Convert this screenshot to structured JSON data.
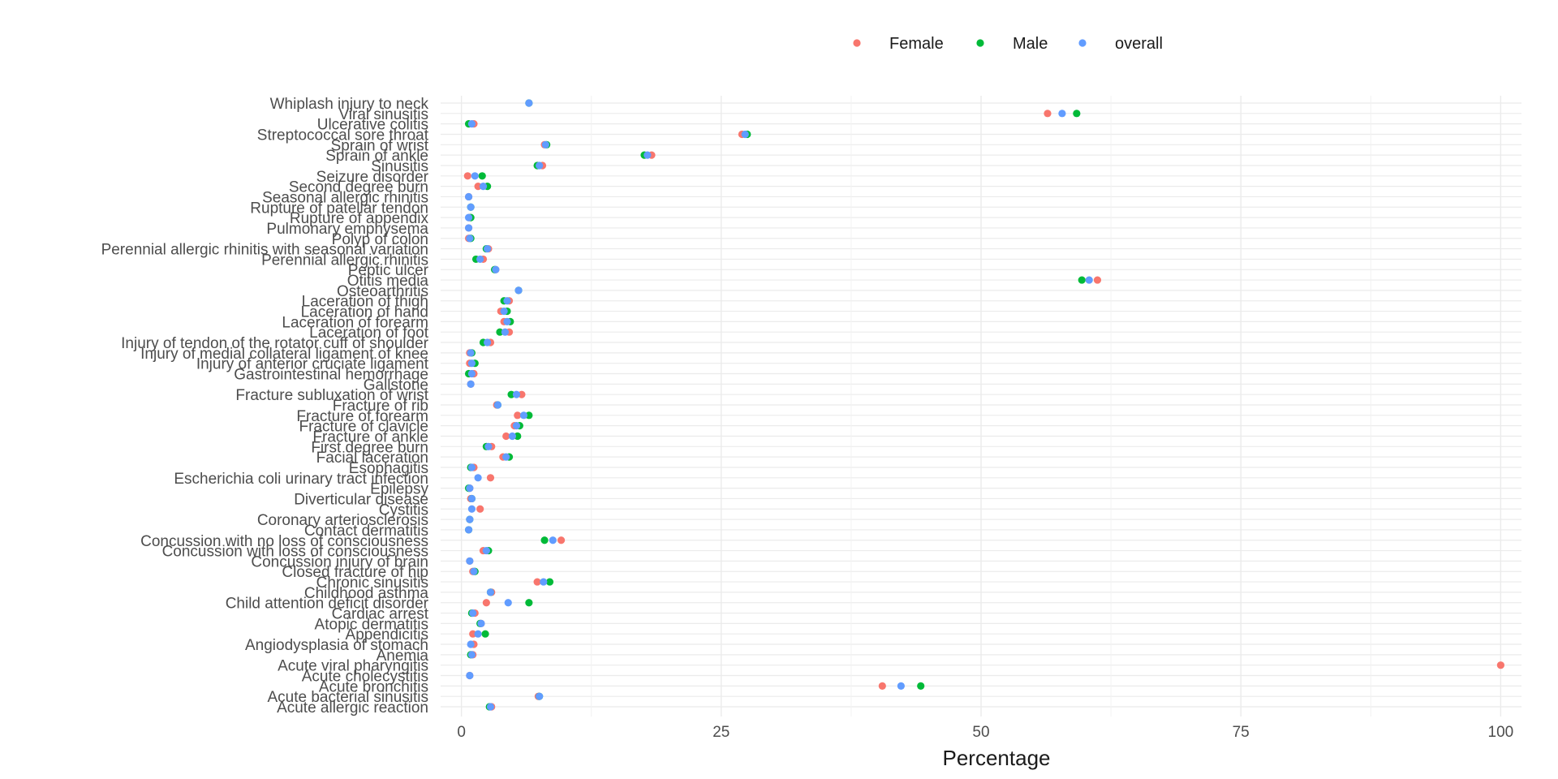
{
  "chart_data": {
    "type": "scatter",
    "xlabel": "Percentage",
    "ylabel": "",
    "xlim": [
      -2,
      102
    ],
    "xticks": [
      0,
      25,
      50,
      75,
      100
    ],
    "grid": true,
    "legend_position": "top",
    "series": [
      {
        "name": "Female",
        "color": "#F8766D"
      },
      {
        "name": "Male",
        "color": "#00BA38"
      },
      {
        "name": "overall",
        "color": "#619CFF"
      }
    ],
    "categories": [
      "Acute allergic reaction",
      "Acute bacterial sinusitis",
      "Acute bronchitis",
      "Acute cholecystitis",
      "Acute viral pharyngitis",
      "Anemia",
      "Angiodysplasia of stomach",
      "Appendicitis",
      "Atopic dermatitis",
      "Cardiac arrest",
      "Child attention deficit disorder",
      "Childhood asthma",
      "Chronic sinusitis",
      "Closed fracture of hip",
      "Concussion injury of brain",
      "Concussion with loss of consciousness",
      "Concussion with no loss of consciousness",
      "Contact dermatitis",
      "Coronary arteriosclerosis",
      "Cystitis",
      "Diverticular disease",
      "Epilepsy",
      "Escherichia coli urinary tract infection",
      "Esophagitis",
      "Facial laceration",
      "First degree burn",
      "Fracture of ankle",
      "Fracture of clavicle",
      "Fracture of forearm",
      "Fracture of rib",
      "Fracture subluxation of wrist",
      "Gallstone",
      "Gastrointestinal hemorrhage",
      "Injury of anterior cruciate ligament",
      "Injury of medial collateral ligament of knee",
      "Injury of tendon of the rotator cuff of shoulder",
      "Laceration of foot",
      "Laceration of forearm",
      "Laceration of hand",
      "Laceration of thigh",
      "Osteoarthritis",
      "Otitis media",
      "Peptic ulcer",
      "Perennial allergic rhinitis",
      "Perennial allergic rhinitis with seasonal variation",
      "Polyp of colon",
      "Pulmonary emphysema",
      "Rupture of appendix",
      "Rupture of patellar tendon",
      "Seasonal allergic rhinitis",
      "Second degree burn",
      "Seizure disorder",
      "Sinusitis",
      "Sprain of ankle",
      "Sprain of wrist",
      "Streptococcal sore throat",
      "Ulcerative colitis",
      "Viral sinusitis",
      "Whiplash injury to neck"
    ],
    "points": [
      {
        "cat": "Acute allergic reaction",
        "Female": 2.9,
        "Male": 2.7,
        "overall": 2.8
      },
      {
        "cat": "Acute bacterial sinusitis",
        "Female": 7.4,
        "Male": 7.5,
        "overall": 7.5
      },
      {
        "cat": "Acute bronchitis",
        "Female": 40.5,
        "Male": 44.2,
        "overall": 42.3
      },
      {
        "cat": "Acute cholecystitis",
        "Female": 0.8,
        "Male": null,
        "overall": 0.8
      },
      {
        "cat": "Acute viral pharyngitis",
        "Female": 100,
        "Male": null,
        "overall": null
      },
      {
        "cat": "Anemia",
        "Female": 1.1,
        "Male": 0.9,
        "overall": 1.0
      },
      {
        "cat": "Angiodysplasia of stomach",
        "Female": 1.2,
        "Male": null,
        "overall": 0.9
      },
      {
        "cat": "Appendicitis",
        "Female": 1.1,
        "Male": 2.3,
        "overall": 1.6
      },
      {
        "cat": "Atopic dermatitis",
        "Female": 1.9,
        "Male": 1.8,
        "overall": 1.9
      },
      {
        "cat": "Cardiac arrest",
        "Female": 1.3,
        "Male": 1.0,
        "overall": 1.1
      },
      {
        "cat": "Child attention deficit disorder",
        "Female": 2.4,
        "Male": 6.5,
        "overall": 4.5
      },
      {
        "cat": "Childhood asthma",
        "Female": 2.9,
        "Male": 2.8,
        "overall": 2.8
      },
      {
        "cat": "Chronic sinusitis",
        "Female": 7.3,
        "Male": 8.5,
        "overall": 7.9
      },
      {
        "cat": "Closed fracture of hip",
        "Female": 1.1,
        "Male": 1.3,
        "overall": 1.2
      },
      {
        "cat": "Concussion injury of brain",
        "Female": 0.8,
        "Male": null,
        "overall": 0.8
      },
      {
        "cat": "Concussion with loss of consciousness",
        "Female": 2.1,
        "Male": 2.6,
        "overall": 2.4
      },
      {
        "cat": "Concussion with no loss of consciousness",
        "Female": 9.6,
        "Male": 8.0,
        "overall": 8.8
      },
      {
        "cat": "Contact dermatitis",
        "Female": null,
        "Male": 0.7,
        "overall": 0.7
      },
      {
        "cat": "Coronary arteriosclerosis",
        "Female": null,
        "Male": 0.8,
        "overall": 0.8
      },
      {
        "cat": "Cystitis",
        "Female": 1.8,
        "Male": null,
        "overall": 1.0
      },
      {
        "cat": "Diverticular disease",
        "Female": 0.9,
        "Male": 1.0,
        "overall": 1.0
      },
      {
        "cat": "Epilepsy",
        "Female": 0.8,
        "Male": 0.7,
        "overall": 0.8
      },
      {
        "cat": "Escherichia coli urinary tract infection",
        "Female": 2.8,
        "Male": null,
        "overall": 1.6
      },
      {
        "cat": "Esophagitis",
        "Female": 1.2,
        "Male": 0.9,
        "overall": 1.0
      },
      {
        "cat": "Facial laceration",
        "Female": 4.0,
        "Male": 4.6,
        "overall": 4.3
      },
      {
        "cat": "First degree burn",
        "Female": 2.9,
        "Male": 2.4,
        "overall": 2.6
      },
      {
        "cat": "Fracture of ankle",
        "Female": 4.3,
        "Male": 5.4,
        "overall": 4.9
      },
      {
        "cat": "Fracture of clavicle",
        "Female": 5.1,
        "Male": 5.6,
        "overall": 5.3
      },
      {
        "cat": "Fracture of forearm",
        "Female": 5.4,
        "Male": 6.5,
        "overall": 6.0
      },
      {
        "cat": "Fracture of rib",
        "Female": 3.4,
        "Male": 3.5,
        "overall": 3.5
      },
      {
        "cat": "Fracture subluxation of wrist",
        "Female": 5.8,
        "Male": 4.8,
        "overall": 5.3
      },
      {
        "cat": "Gallstone",
        "Female": 0.9,
        "Male": null,
        "overall": 0.9
      },
      {
        "cat": "Gastrointestinal hemorrhage",
        "Female": 1.2,
        "Male": 0.7,
        "overall": 1.0
      },
      {
        "cat": "Injury of anterior cruciate ligament",
        "Female": 0.8,
        "Male": 1.3,
        "overall": 1.0
      },
      {
        "cat": "Injury of medial collateral ligament of knee",
        "Female": 0.8,
        "Male": 1.0,
        "overall": 0.9
      },
      {
        "cat": "Injury of tendon of the rotator cuff of shoulder",
        "Female": 2.8,
        "Male": 2.1,
        "overall": 2.5
      },
      {
        "cat": "Laceration of foot",
        "Female": 4.6,
        "Male": 3.7,
        "overall": 4.2
      },
      {
        "cat": "Laceration of forearm",
        "Female": 4.1,
        "Male": 4.7,
        "overall": 4.4
      },
      {
        "cat": "Laceration of hand",
        "Female": 3.8,
        "Male": 4.4,
        "overall": 4.1
      },
      {
        "cat": "Laceration of thigh",
        "Female": 4.6,
        "Male": 4.1,
        "overall": 4.4
      },
      {
        "cat": "Osteoarthritis",
        "Female": null,
        "Male": 5.5,
        "overall": 5.5
      },
      {
        "cat": "Otitis media",
        "Female": 61.2,
        "Male": 59.7,
        "overall": 60.4
      },
      {
        "cat": "Peptic ulcer",
        "Female": 3.3,
        "Male": 3.2,
        "overall": 3.3
      },
      {
        "cat": "Perennial allergic rhinitis",
        "Female": 2.1,
        "Male": 1.4,
        "overall": 1.8
      },
      {
        "cat": "Perennial allergic rhinitis with seasonal variation",
        "Female": 2.6,
        "Male": 2.4,
        "overall": 2.5
      },
      {
        "cat": "Polyp of colon",
        "Female": 0.7,
        "Male": 0.9,
        "overall": 0.8
      },
      {
        "cat": "Pulmonary emphysema",
        "Female": 0.7,
        "Male": null,
        "overall": 0.7
      },
      {
        "cat": "Rupture of appendix",
        "Female": 0.8,
        "Male": 0.9,
        "overall": 0.7
      },
      {
        "cat": "Rupture of patellar tendon",
        "Female": null,
        "Male": 0.9,
        "overall": 0.9
      },
      {
        "cat": "Seasonal allergic rhinitis",
        "Female": 0.7,
        "Male": null,
        "overall": 0.7
      },
      {
        "cat": "Second degree burn",
        "Female": 1.6,
        "Male": 2.5,
        "overall": 2.1
      },
      {
        "cat": "Seizure disorder",
        "Female": 0.6,
        "Male": 2.0,
        "overall": 1.3
      },
      {
        "cat": "Sinusitis",
        "Female": 7.8,
        "Male": 7.3,
        "overall": 7.5
      },
      {
        "cat": "Sprain of ankle",
        "Female": 18.3,
        "Male": 17.6,
        "overall": 17.9
      },
      {
        "cat": "Sprain of wrist",
        "Female": 8.0,
        "Male": 8.2,
        "overall": 8.1
      },
      {
        "cat": "Streptococcal sore throat",
        "Female": 27.0,
        "Male": 27.5,
        "overall": 27.3
      },
      {
        "cat": "Ulcerative colitis",
        "Female": 1.2,
        "Male": 0.7,
        "overall": 1.0
      },
      {
        "cat": "Viral sinusitis",
        "Female": 56.4,
        "Male": 59.2,
        "overall": 57.8
      },
      {
        "cat": "Whiplash injury to neck",
        "Female": null,
        "Male": 6.5,
        "overall": 6.5
      }
    ]
  }
}
